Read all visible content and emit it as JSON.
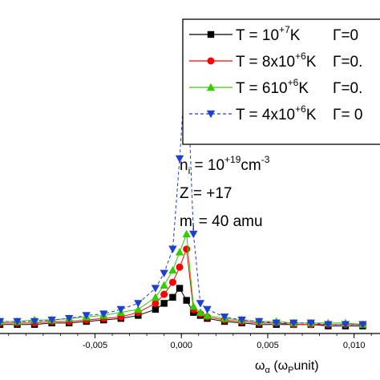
{
  "chart_data": {
    "type": "line",
    "title": "",
    "x_range": [
      -0.0105,
      0.0115
    ],
    "y_range": [
      0,
      1
    ],
    "x_ticks": [
      {
        "value": -0.005,
        "label": "-0,005"
      },
      {
        "value": 0.0,
        "label": "0,000"
      },
      {
        "value": 0.005,
        "label": "0,005"
      },
      {
        "value": 0.01,
        "label": "0,010"
      }
    ],
    "xlabel": {
      "main": "ω",
      "main_sub": "α",
      "paren_open": "(ω",
      "paren_sub": "P",
      "paren_rest": "unit)"
    },
    "legend_placement": "top-right",
    "series": [
      {
        "name_prefix": "T = 10",
        "name_sup": "+7",
        "name_suffix": "K",
        "gamma": "Γ=0",
        "color": "#000000",
        "marker": "square",
        "x": [
          -0.0105,
          -0.0095,
          -0.0085,
          -0.0075,
          -0.0065,
          -0.0055,
          -0.0045,
          -0.0035,
          -0.0025,
          -0.0015,
          -0.001,
          -0.0005,
          -0.0001,
          0.0003,
          0.0007,
          0.0011,
          0.0015,
          0.0025,
          0.0035,
          0.0045,
          0.0055,
          0.0065,
          0.0075,
          0.0085,
          0.0095,
          0.0105
        ],
        "y": [
          0.03,
          0.03,
          0.03,
          0.035,
          0.035,
          0.04,
          0.045,
          0.05,
          0.06,
          0.08,
          0.1,
          0.12,
          0.15,
          0.11,
          0.07,
          0.06,
          0.05,
          0.04,
          0.035,
          0.03,
          0.03,
          0.03,
          0.03,
          0.025,
          0.025,
          0.025
        ]
      },
      {
        "name_prefix": "T = 8x10",
        "name_sup": "+6",
        "name_suffix": "K",
        "gamma": "Γ=0.",
        "color": "#ff0000",
        "marker": "circle",
        "x": [
          -0.0105,
          -0.0095,
          -0.0085,
          -0.0075,
          -0.0065,
          -0.0055,
          -0.0045,
          -0.0035,
          -0.0025,
          -0.0015,
          -0.001,
          -0.0005,
          -0.0001,
          0.0003,
          0.0007,
          0.0011,
          0.0015,
          0.0025,
          0.0035,
          0.0045,
          0.0055,
          0.0065,
          0.0075,
          0.0085,
          0.0095,
          0.0105
        ],
        "y": [
          0.035,
          0.035,
          0.035,
          0.04,
          0.04,
          0.045,
          0.05,
          0.055,
          0.07,
          0.1,
          0.13,
          0.17,
          0.22,
          0.28,
          0.08,
          0.065,
          0.055,
          0.045,
          0.04,
          0.035,
          0.035,
          0.03,
          0.03,
          0.03,
          0.03,
          0.03
        ]
      },
      {
        "name_prefix": "T = 610",
        "name_sup": "+6",
        "name_suffix": "K",
        "gamma": "Γ=0.",
        "color": "#33cc00",
        "marker": "triangle-up",
        "x": [
          -0.0105,
          -0.0095,
          -0.0085,
          -0.0075,
          -0.0065,
          -0.0055,
          -0.0045,
          -0.0035,
          -0.0025,
          -0.0015,
          -0.001,
          -0.0005,
          -0.0001,
          0.0003,
          0.0007,
          0.0011,
          0.0015,
          0.0025,
          0.0035,
          0.0045,
          0.0055,
          0.0065,
          0.0075,
          0.0085,
          0.0095,
          0.0105
        ],
        "y": [
          0.04,
          0.04,
          0.045,
          0.045,
          0.05,
          0.055,
          0.06,
          0.07,
          0.08,
          0.12,
          0.16,
          0.21,
          0.27,
          0.33,
          0.09,
          0.07,
          0.06,
          0.05,
          0.045,
          0.04,
          0.04,
          0.035,
          0.035,
          0.035,
          0.035,
          0.03
        ]
      },
      {
        "name_prefix": "T = 4x10",
        "name_sup": "+6",
        "name_suffix": "K",
        "gamma": "Γ= 0",
        "color": "#1e40d0",
        "marker": "triangle-down",
        "x": [
          -0.0105,
          -0.0095,
          -0.0085,
          -0.0075,
          -0.0065,
          -0.0055,
          -0.0045,
          -0.0035,
          -0.0025,
          -0.0015,
          -0.001,
          -0.0005,
          -0.0001,
          0.0003,
          0.0007,
          0.0011,
          0.0015,
          0.0025,
          0.0035,
          0.0045,
          0.0055,
          0.0065,
          0.0075,
          0.0085,
          0.0095,
          0.0105
        ],
        "y": [
          0.04,
          0.04,
          0.04,
          0.045,
          0.05,
          0.06,
          0.065,
          0.08,
          0.1,
          0.15,
          0.2,
          0.28,
          0.58,
          0.93,
          0.33,
          0.1,
          0.08,
          0.055,
          0.045,
          0.04,
          0.035,
          0.035,
          0.035,
          0.03,
          0.03,
          0.03
        ]
      }
    ],
    "annotations": {
      "density": {
        "base": "n",
        "base_sub": "i",
        "eq": " = 10",
        "sup": "+19",
        "unit": "cm",
        "unit_sup": "-3"
      },
      "charge": "Z = +17",
      "mass": {
        "base": "m",
        "base_sub": "i",
        "rest": " = 40 amu"
      }
    }
  }
}
